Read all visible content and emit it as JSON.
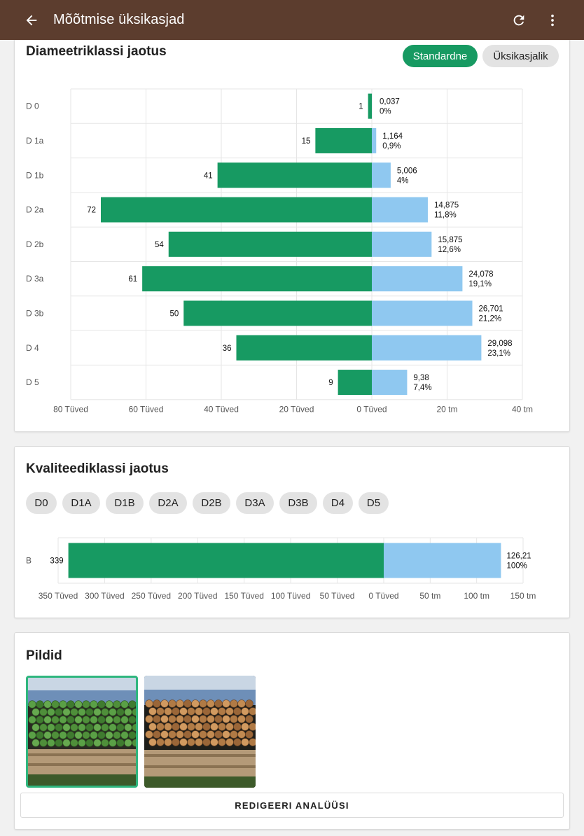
{
  "header": {
    "title": "Mõõtmise üksikasjad",
    "back_icon": "arrow-back-icon",
    "refresh_icon": "refresh-icon",
    "more_icon": "more-vert-icon"
  },
  "colors": {
    "appbar": "#5c3d2e",
    "count_bar": "#179a62",
    "volume_bar": "#8fc8f0",
    "accent": "#179a62"
  },
  "diameter_card": {
    "title": "Diameetriklassi jaotus",
    "toggle_standard": "Standardne",
    "toggle_detailed": "Üksikasjalik"
  },
  "quality_card": {
    "title": "Kvaliteediklassi jaotus",
    "chips": [
      "D0",
      "D1A",
      "D1B",
      "D2A",
      "D2B",
      "D3A",
      "D3B",
      "D4",
      "D5"
    ]
  },
  "images_card": {
    "title": "Pildid",
    "images": [
      {
        "name": "log-pile-analyzed",
        "selected": true
      },
      {
        "name": "log-pile-photo",
        "selected": false
      }
    ],
    "edit_button": "REDIGEERI ANALÜÜSI"
  },
  "chart_data": [
    {
      "type": "bar",
      "orientation": "horizontal-diverging",
      "categories": [
        "D 0",
        "D 1a",
        "D 1b",
        "D 2a",
        "D 2b",
        "D 3a",
        "D 3b",
        "D 4",
        "D 5"
      ],
      "series": [
        {
          "name": "Tüved",
          "side": "left",
          "values": [
            1,
            15,
            41,
            72,
            54,
            61,
            50,
            36,
            9
          ],
          "labels": [
            "1",
            "15",
            "41",
            "72",
            "54",
            "61",
            "50",
            "36",
            "9"
          ]
        },
        {
          "name": "tm",
          "side": "right",
          "values": [
            0.037,
            1.164,
            5.006,
            14.875,
            15.875,
            24.078,
            26.701,
            29.098,
            9.38
          ],
          "labels": [
            "0,037",
            "1,164",
            "5,006",
            "14,875",
            "15,875",
            "24,078",
            "26,701",
            "29,098",
            "9,38"
          ],
          "percent_labels": [
            "0%",
            "0,9%",
            "4%",
            "11,8%",
            "12,6%",
            "19,1%",
            "21,2%",
            "23,1%",
            "7,4%"
          ]
        }
      ],
      "left_ticks": [
        "80 Tüved",
        "60 Tüved",
        "40 Tüved",
        "20 Tüved",
        "0 Tüved"
      ],
      "left_tick_values": [
        80,
        60,
        40,
        20,
        0
      ],
      "right_ticks": [
        "20 tm",
        "40 tm"
      ],
      "right_tick_values": [
        20,
        40
      ],
      "left_range": [
        0,
        80
      ],
      "right_range": [
        0,
        40
      ],
      "grid": true
    },
    {
      "type": "bar",
      "orientation": "horizontal-diverging",
      "categories": [
        "B"
      ],
      "series": [
        {
          "name": "Tüved",
          "side": "left",
          "values": [
            339
          ],
          "labels": [
            "339"
          ]
        },
        {
          "name": "tm",
          "side": "right",
          "values": [
            126.21
          ],
          "labels": [
            "126,21"
          ],
          "percent_labels": [
            "100%"
          ]
        }
      ],
      "left_ticks": [
        "350 Tüved",
        "300 Tüved",
        "250 Tüved",
        "200 Tüved",
        "150 Tüved",
        "100 Tüved",
        "50 Tüved",
        "0 Tüved"
      ],
      "left_tick_values": [
        350,
        300,
        250,
        200,
        150,
        100,
        50,
        0
      ],
      "right_ticks": [
        "50 tm",
        "100 tm",
        "150 tm"
      ],
      "right_tick_values": [
        50,
        100,
        150
      ],
      "left_range": [
        0,
        350
      ],
      "right_range": [
        0,
        150
      ],
      "grid": true
    }
  ]
}
